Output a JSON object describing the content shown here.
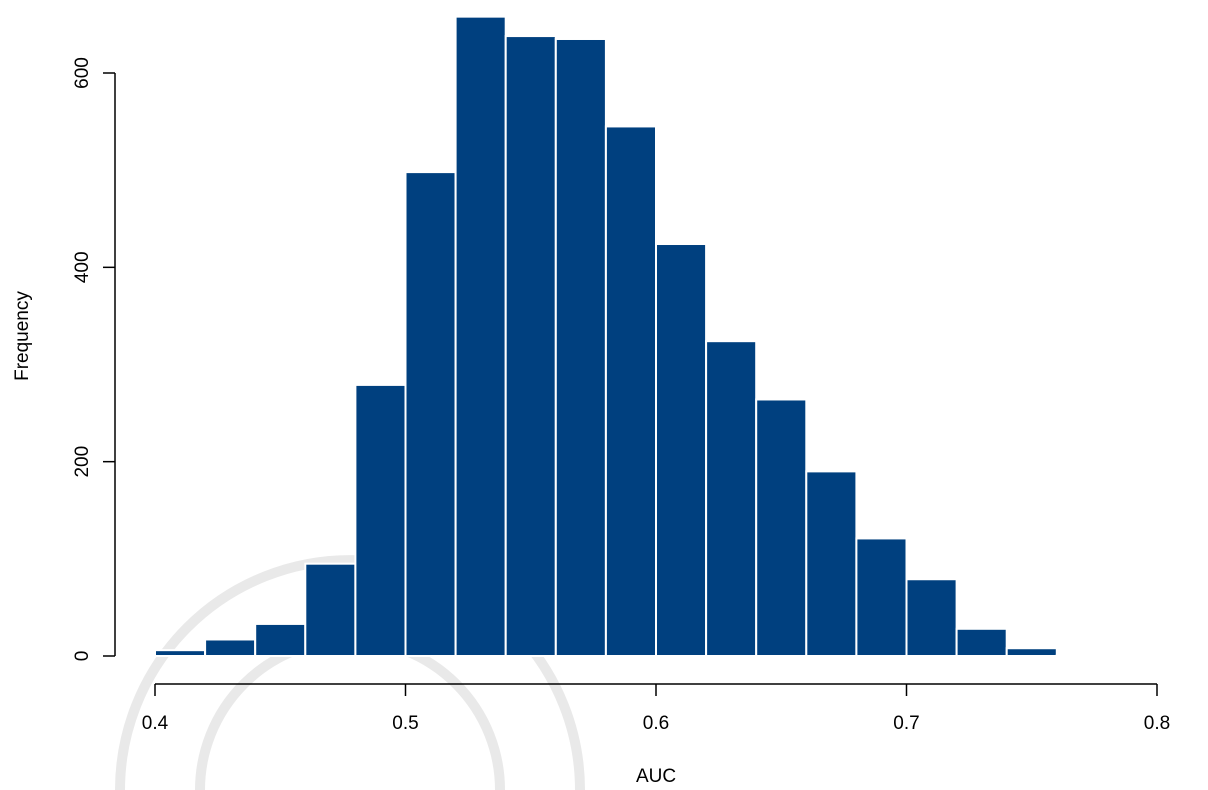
{
  "chart_data": {
    "type": "bar",
    "subtype": "histogram",
    "title": "",
    "xlabel": "AUC",
    "ylabel": "Frequency",
    "xlim": [
      0.4,
      0.82
    ],
    "ylim": [
      0,
      660
    ],
    "x_ticks": [
      0.4,
      0.5,
      0.6,
      0.7,
      0.8
    ],
    "x_tick_labels": [
      "0.4",
      "0.5",
      "0.6",
      "0.7",
      "0.8"
    ],
    "y_ticks": [
      0,
      200,
      400,
      600
    ],
    "y_tick_labels": [
      "0",
      "200",
      "400",
      "600"
    ],
    "bin_width": 0.02,
    "bins": [
      {
        "start": 0.4,
        "end": 0.42,
        "count": 6
      },
      {
        "start": 0.42,
        "end": 0.44,
        "count": 17
      },
      {
        "start": 0.44,
        "end": 0.46,
        "count": 33
      },
      {
        "start": 0.46,
        "end": 0.48,
        "count": 95
      },
      {
        "start": 0.48,
        "end": 0.5,
        "count": 279
      },
      {
        "start": 0.5,
        "end": 0.52,
        "count": 498
      },
      {
        "start": 0.52,
        "end": 0.54,
        "count": 658
      },
      {
        "start": 0.54,
        "end": 0.56,
        "count": 638
      },
      {
        "start": 0.56,
        "end": 0.58,
        "count": 635
      },
      {
        "start": 0.58,
        "end": 0.6,
        "count": 545
      },
      {
        "start": 0.6,
        "end": 0.62,
        "count": 424
      },
      {
        "start": 0.62,
        "end": 0.64,
        "count": 324
      },
      {
        "start": 0.64,
        "end": 0.66,
        "count": 264
      },
      {
        "start": 0.66,
        "end": 0.68,
        "count": 190
      },
      {
        "start": 0.68,
        "end": 0.7,
        "count": 121
      },
      {
        "start": 0.7,
        "end": 0.72,
        "count": 79
      },
      {
        "start": 0.72,
        "end": 0.74,
        "count": 28
      },
      {
        "start": 0.74,
        "end": 0.76,
        "count": 8
      },
      {
        "start": 0.76,
        "end": 0.78,
        "count": 0
      },
      {
        "start": 0.78,
        "end": 0.8,
        "count": 1
      },
      {
        "start": 0.8,
        "end": 0.82,
        "count": 0
      }
    ],
    "bar_color": "#00407f",
    "bar_edge_color": "#ffffff",
    "grid": false,
    "legend": "none"
  }
}
